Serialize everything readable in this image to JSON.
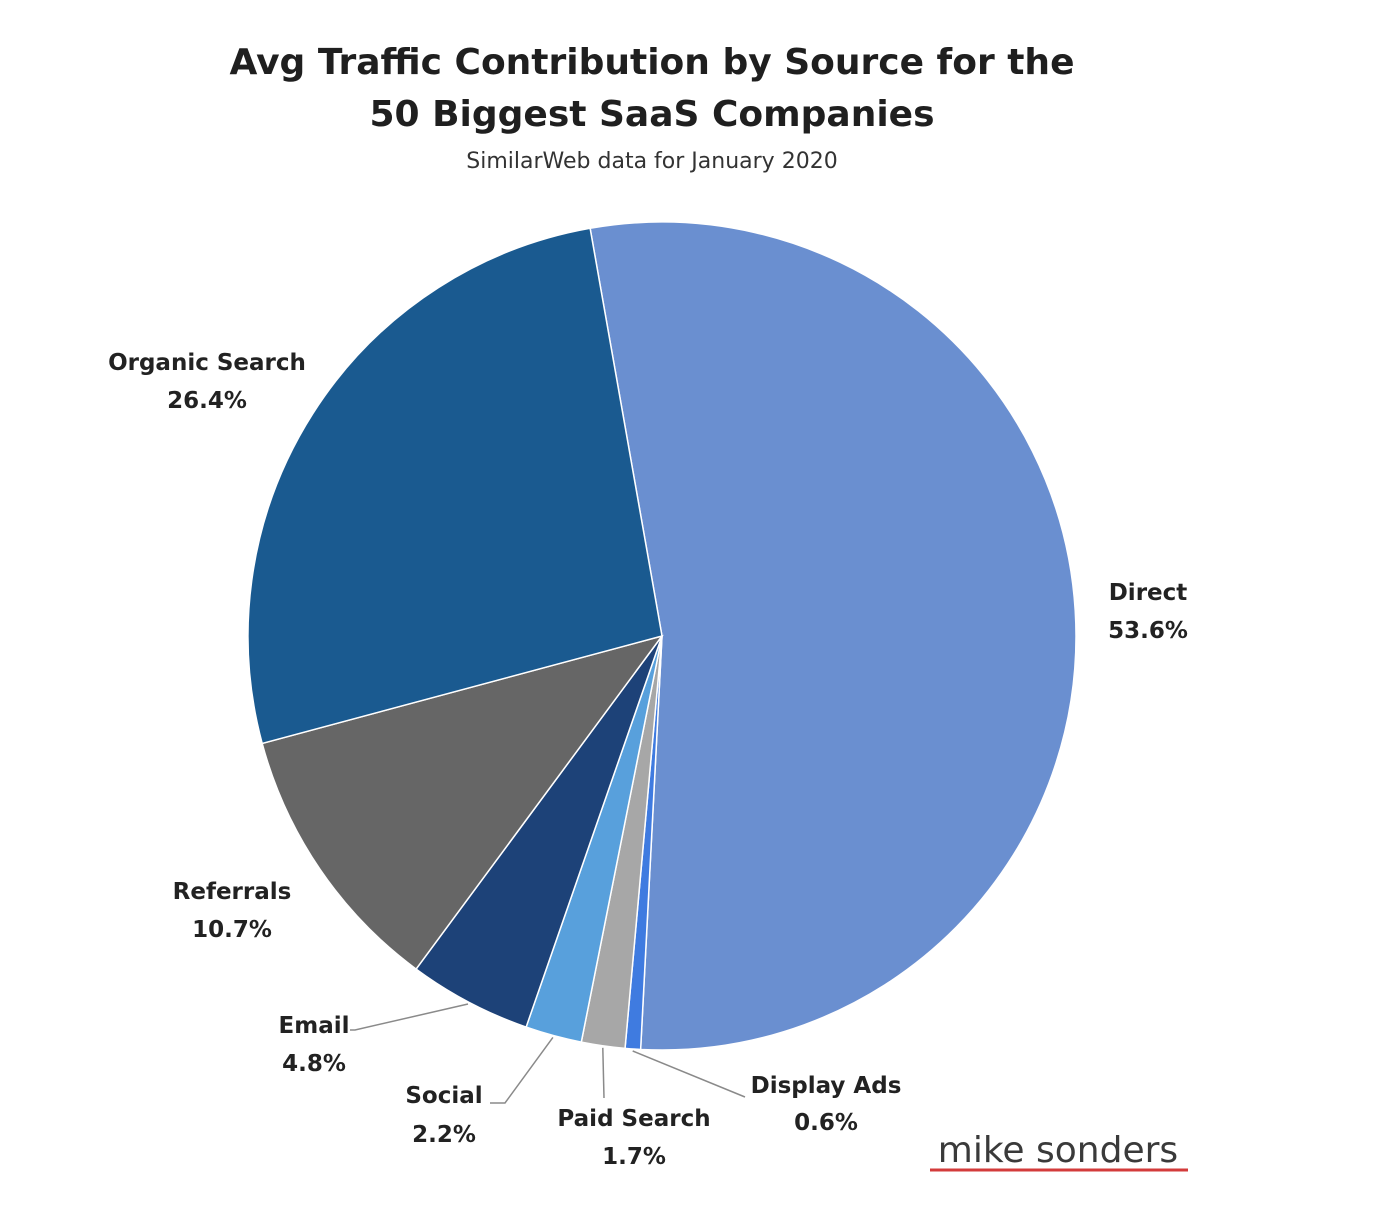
{
  "chart_data": {
    "type": "pie",
    "title_line1": "Avg Traffic Contribution by Source for the",
    "title_line2": "50 Biggest SaaS Companies",
    "subtitle": "SimilarWeb data for January 2020",
    "slices": [
      {
        "name": "Direct",
        "value": 53.6,
        "label": "53.6%",
        "color": "#6a8fd0"
      },
      {
        "name": "Display Ads",
        "value": 0.6,
        "label": "0.6%",
        "color": "#3f7be0"
      },
      {
        "name": "Paid Search",
        "value": 1.7,
        "label": "1.7%",
        "color": "#a7a7a7"
      },
      {
        "name": "Social",
        "value": 2.2,
        "label": "2.2%",
        "color": "#58a0dc"
      },
      {
        "name": "Email",
        "value": 4.8,
        "label": "4.8%",
        "color": "#1d4278"
      },
      {
        "name": "Referrals",
        "value": 10.7,
        "label": "10.7%",
        "color": "#666666"
      },
      {
        "name": "Organic Search",
        "value": 26.4,
        "label": "26.4%",
        "color": "#1a5a90"
      }
    ]
  },
  "branding": {
    "text": "mike sonders",
    "underline_color": "#d33b3b"
  }
}
